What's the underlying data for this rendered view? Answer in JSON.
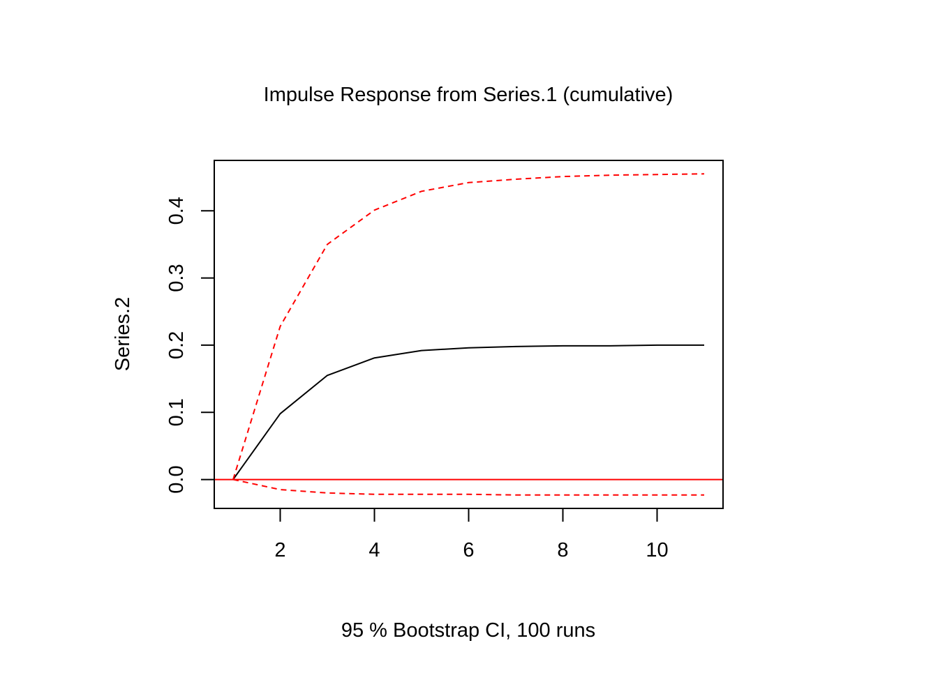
{
  "chart_data": {
    "type": "line",
    "title": "Impulse Response from Series.1 (cumulative)",
    "xlabel": "95 % Bootstrap CI,  100 runs",
    "ylabel": "Series.2",
    "xlim": [
      0.6,
      11.4
    ],
    "ylim": [
      -0.043,
      0.475
    ],
    "x_ticks": [
      2,
      4,
      6,
      8,
      10
    ],
    "x_tick_labels": [
      "2",
      "4",
      "6",
      "8",
      "10"
    ],
    "y_ticks": [
      0.0,
      0.1,
      0.2,
      0.3,
      0.4
    ],
    "y_tick_labels": [
      "0.0",
      "0.1",
      "0.2",
      "0.3",
      "0.4"
    ],
    "grid": false,
    "x": [
      1,
      2,
      3,
      4,
      5,
      6,
      7,
      8,
      9,
      10,
      11
    ],
    "series": [
      {
        "role": "response",
        "color": "#000000",
        "dash": "solid",
        "values": [
          0.0,
          0.098,
          0.155,
          0.181,
          0.192,
          0.196,
          0.198,
          0.199,
          0.199,
          0.2,
          0.2
        ]
      },
      {
        "role": "upper",
        "color": "#ff0000",
        "dash": "dashed",
        "values": [
          0.0,
          0.228,
          0.35,
          0.401,
          0.429,
          0.442,
          0.447,
          0.451,
          0.453,
          0.454,
          0.455
        ]
      },
      {
        "role": "lower",
        "color": "#ff0000",
        "dash": "dashed",
        "values": [
          0.0,
          -0.015,
          -0.02,
          -0.022,
          -0.022,
          -0.022,
          -0.023,
          -0.023,
          -0.023,
          -0.023,
          -0.023
        ]
      }
    ],
    "reference_line": {
      "y": 0.0,
      "color": "#ff0000"
    }
  }
}
